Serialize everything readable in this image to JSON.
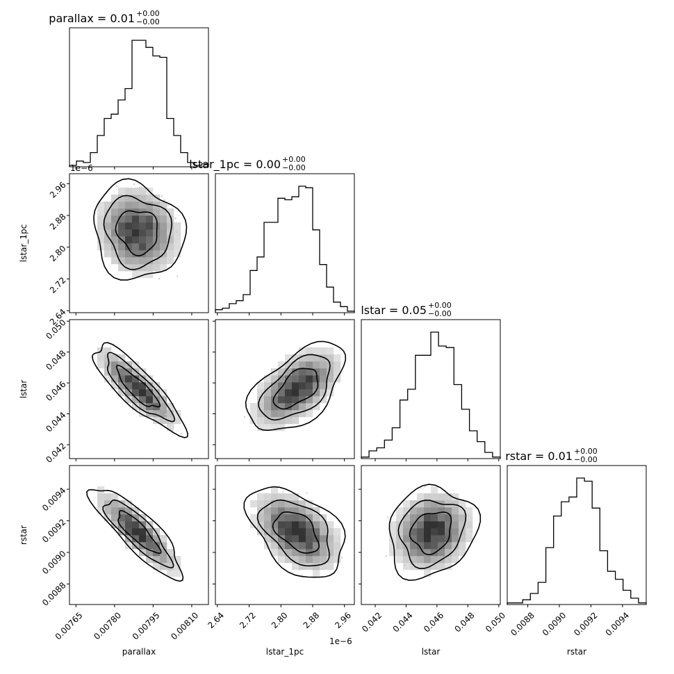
{
  "chart_data": {
    "type": "corner",
    "parameters": [
      "parallax",
      "lstar_1pc",
      "lstar",
      "rstar"
    ],
    "titles": [
      {
        "param": "parallax",
        "label": "parallax = 0.01",
        "upper": "+0.00",
        "lower": "−0.00"
      },
      {
        "param": "lstar_1pc",
        "label": "lstar_1pc = 0.00",
        "upper": "+0.00",
        "lower": "−0.00"
      },
      {
        "param": "lstar",
        "label": "lstar = 0.05",
        "upper": "+0.00",
        "lower": "−0.00"
      },
      {
        "param": "rstar",
        "label": "rstar = 0.01",
        "upper": "+0.00",
        "lower": "−0.00"
      }
    ],
    "axis_ranges": {
      "parallax": [
        0.007625,
        0.008165
      ],
      "lstar_1pc": [
        2.635,
        2.985
      ],
      "lstar": [
        0.0411,
        0.0501
      ],
      "rstar": [
        0.00867,
        0.00955
      ]
    },
    "ticks": {
      "parallax": {
        "values": [
          0.00765,
          0.0078,
          0.00795,
          0.0081
        ],
        "labels": [
          "0.00765",
          "0.00780",
          "0.00795",
          "0.00810"
        ]
      },
      "lstar_1pc": {
        "values": [
          2.64,
          2.72,
          2.8,
          2.88,
          2.96
        ],
        "labels": [
          "2.64",
          "2.72",
          "2.80",
          "2.88",
          "2.96"
        ],
        "offset": "1e−6"
      },
      "lstar": {
        "values": [
          0.042,
          0.044,
          0.046,
          0.048,
          0.05
        ],
        "labels": [
          "0.042",
          "0.044",
          "0.046",
          "0.048",
          "0.050"
        ]
      },
      "rstar": {
        "values": [
          0.0088,
          0.009,
          0.0092,
          0.0094
        ],
        "labels": [
          "0.0088",
          "0.0090",
          "0.0092",
          "0.0094"
        ]
      }
    },
    "histograms": {
      "parallax": {
        "edges_start": 0.007625,
        "edges_end": 0.008165,
        "counts": [
          1,
          4,
          3,
          10,
          22,
          34,
          37,
          47,
          55,
          89,
          89,
          84,
          78,
          77,
          34,
          22,
          10,
          3,
          1,
          2
        ]
      },
      "lstar_1pc": {
        "edges_start": 2.635,
        "edges_end": 2.985,
        "counts": [
          2,
          3,
          6,
          8,
          12,
          28,
          37,
          60,
          60,
          76,
          75,
          77,
          84,
          83,
          55,
          32,
          17,
          7,
          4,
          1
        ]
      },
      "lstar": {
        "edges_start": 0.0411,
        "edges_end": 0.0501,
        "counts": [
          1,
          5,
          7,
          12,
          20,
          38,
          45,
          67,
          67,
          82,
          73,
          72,
          48,
          32,
          18,
          11,
          4,
          1
        ]
      },
      "rstar": {
        "edges_start": 0.00867,
        "edges_end": 0.00955,
        "counts": [
          1,
          1,
          3,
          7,
          14,
          36,
          56,
          65,
          68,
          80,
          78,
          61,
          34,
          21,
          16,
          9,
          4,
          1
        ]
      }
    }
  }
}
